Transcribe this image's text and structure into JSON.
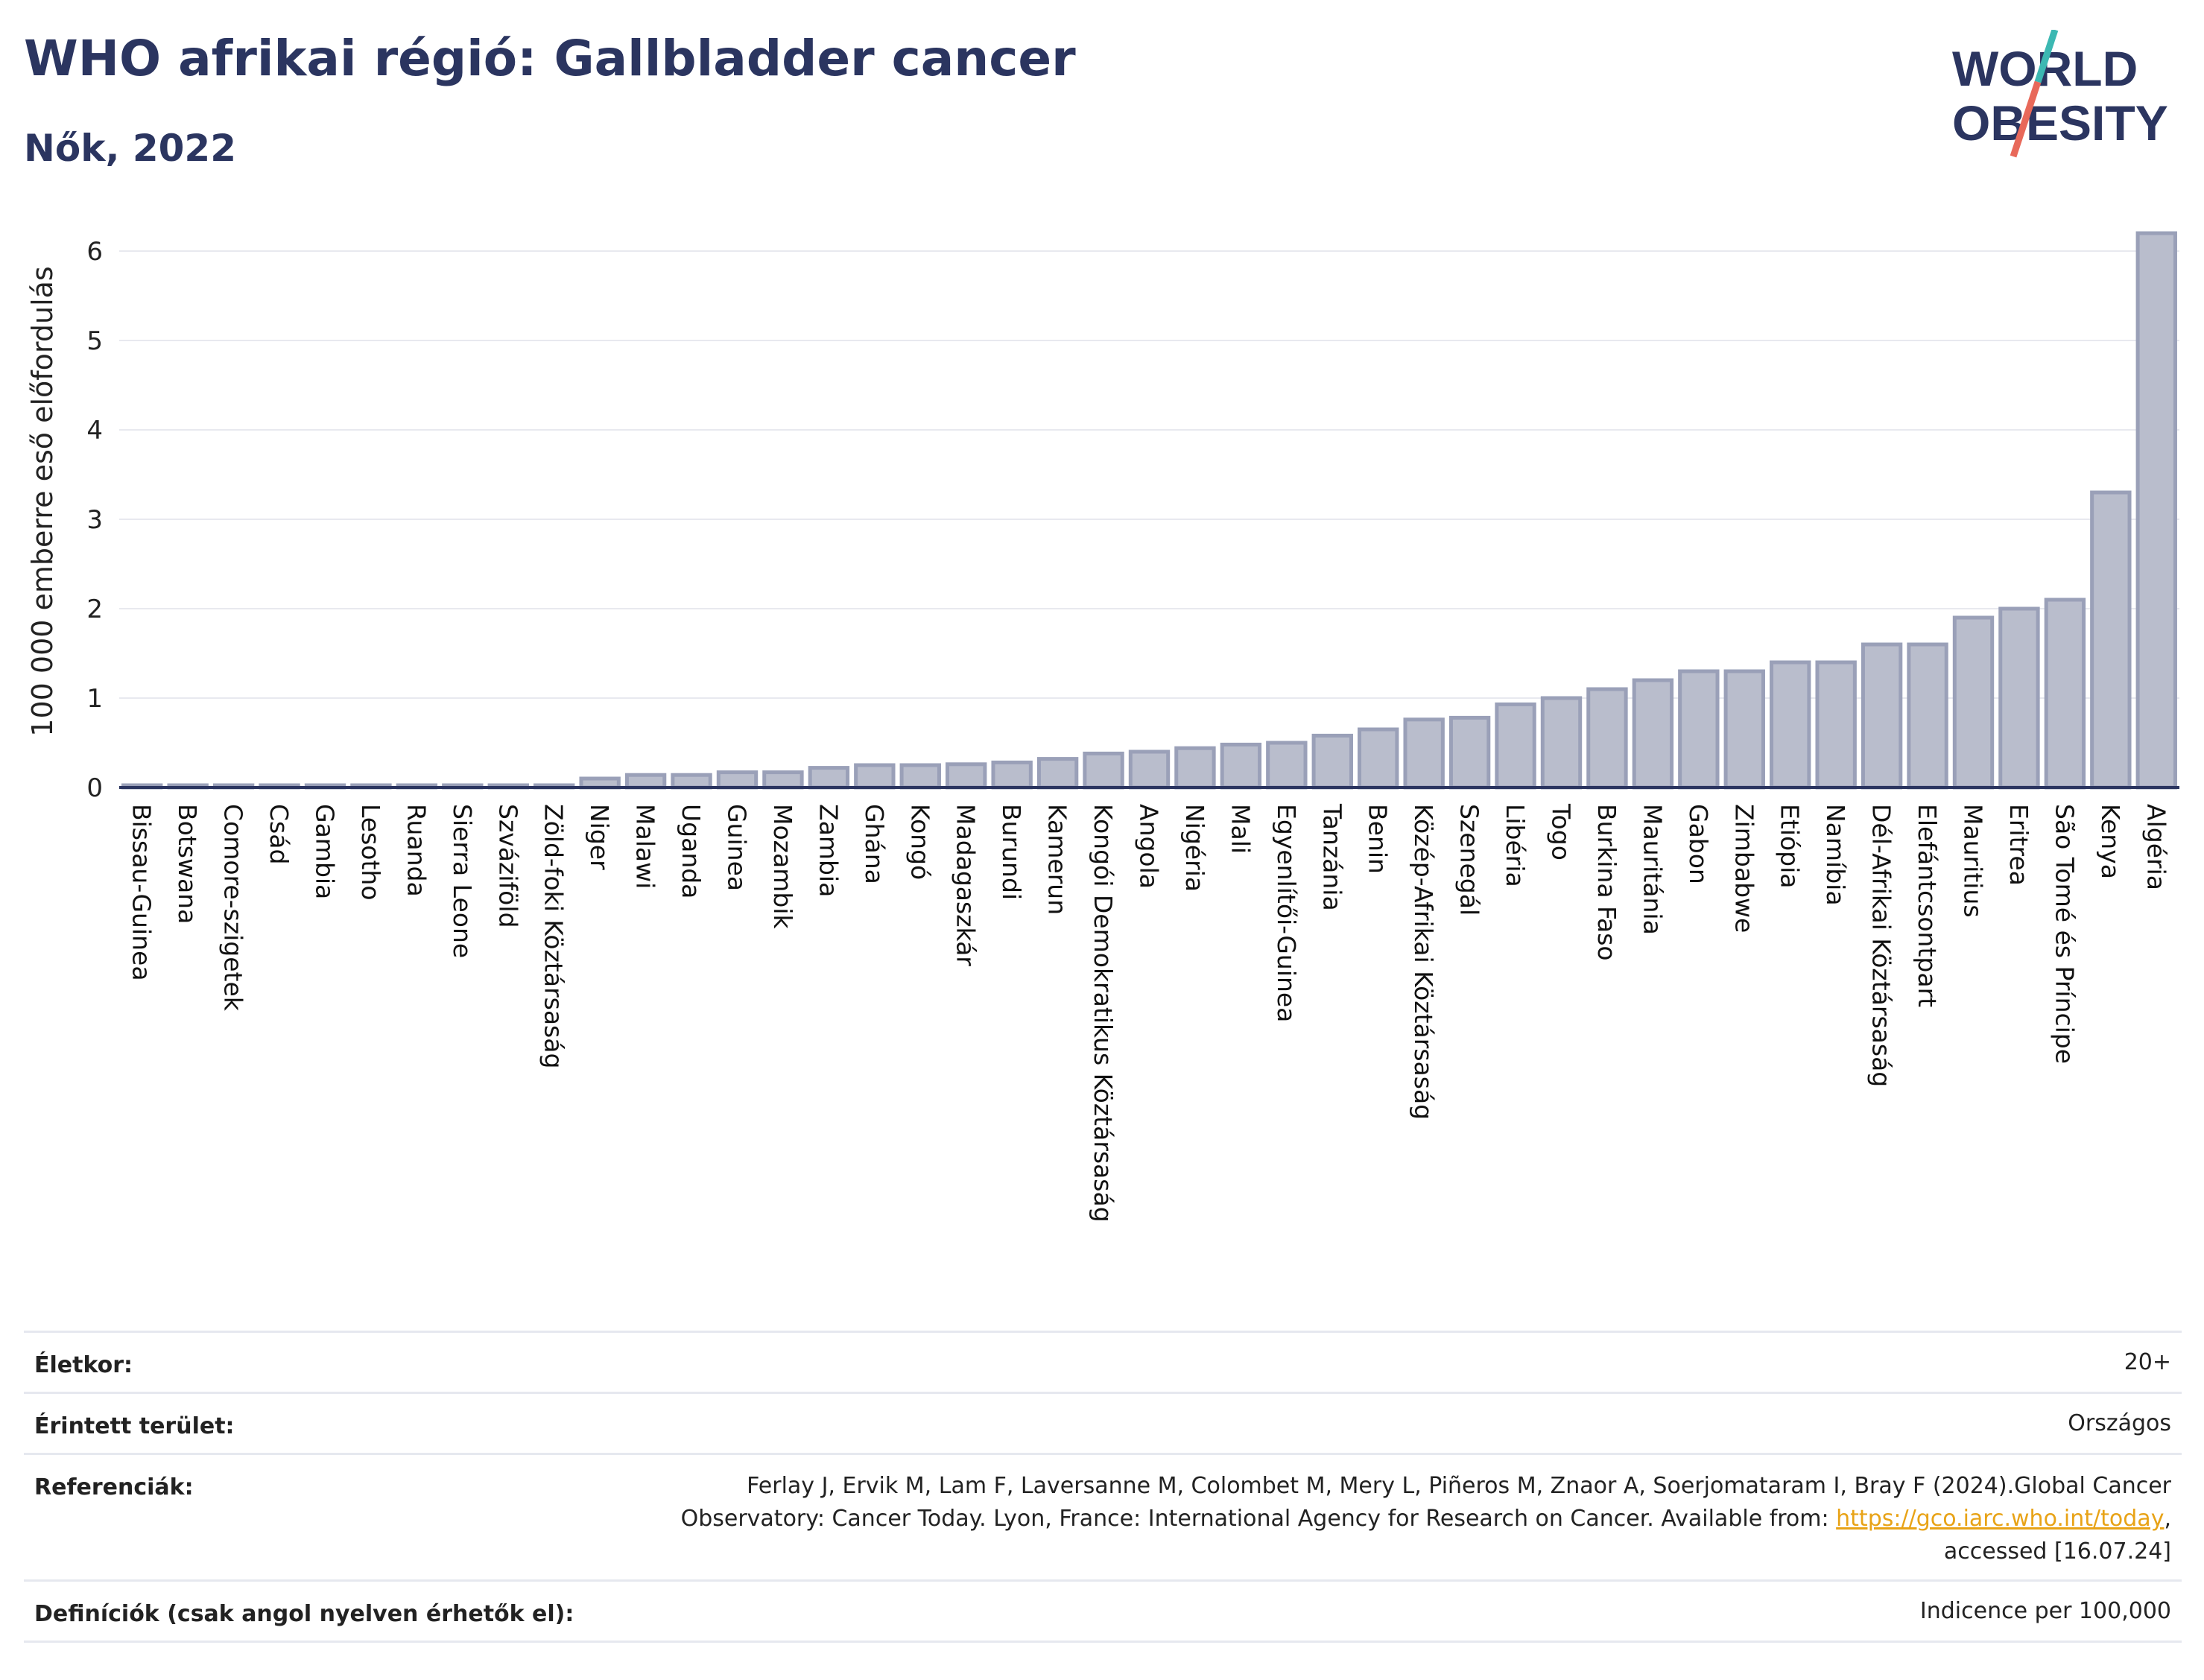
{
  "header": {
    "title": "WHO afrikai régió: Gallbladder cancer",
    "subtitle": "Nők, 2022",
    "logo_line1": "WORLD",
    "logo_line2": "OBESITY"
  },
  "colors": {
    "title": "#2b3560",
    "bar_fill": "#b9bdcc",
    "bar_stroke": "#9aa0b8",
    "axis": "#2b3560",
    "grid": "#e8e9ef",
    "logo_teal": "#3cb8b2",
    "logo_red": "#e8695a",
    "link": "#e8a317"
  },
  "chart_data": {
    "type": "bar",
    "ylabel": "100 000 emberre eső előfordulás",
    "xlabel": "",
    "ylim": [
      0,
      6.4
    ],
    "yticks": [
      0,
      1,
      2,
      3,
      4,
      5,
      6
    ],
    "grid": true,
    "categories": [
      "Bissau-Guinea",
      "Botswana",
      "Comore-szigetek",
      "Csád",
      "Gambia",
      "Lesotho",
      "Ruanda",
      "Sierra Leone",
      "Szváziföld",
      "Zöld-foki Köztársaság",
      "Niger",
      "Malawi",
      "Uganda",
      "Guinea",
      "Mozambik",
      "Zambia",
      "Ghána",
      "Kongó",
      "Madagaszkár",
      "Burundi",
      "Kamerun",
      "Kongói Demokratikus Köztársaság",
      "Angola",
      "Nigéria",
      "Mali",
      "Egyenlítői-Guinea",
      "Tanzánia",
      "Benin",
      "Közép-Afrikai Köztársaság",
      "Szenegál",
      "Libéria",
      "Togo",
      "Burkina Faso",
      "Mauritánia",
      "Gabon",
      "Zimbabwe",
      "Etiópia",
      "Namíbia",
      "Dél-Afrikai Köztársaság",
      "Elefántcsontpart",
      "Mauritius",
      "Eritrea",
      "São Tomé és Príncipe",
      "Kenya",
      "Algéria"
    ],
    "values": [
      0.02,
      0.02,
      0.02,
      0.02,
      0.02,
      0.02,
      0.02,
      0.02,
      0.02,
      0.02,
      0.1,
      0.14,
      0.14,
      0.17,
      0.17,
      0.22,
      0.25,
      0.25,
      0.26,
      0.28,
      0.32,
      0.38,
      0.4,
      0.44,
      0.48,
      0.5,
      0.58,
      0.65,
      0.76,
      0.78,
      0.93,
      1.0,
      1.1,
      1.2,
      1.3,
      1.3,
      1.4,
      1.4,
      1.6,
      1.6,
      1.9,
      2.0,
      2.1,
      3.3,
      6.2
    ]
  },
  "info": {
    "age_label": "Életkor:",
    "age_value": "20+",
    "area_label": "Érintett terület:",
    "area_value": "Országos",
    "ref_label": "Referenciák:",
    "ref_line1": "Ferlay J, Ervik M, Lam F, Laversanne M, Colombet M, Mery L, Piñeros M, Znaor A, Soerjomataram I, Bray F (2024).Global Cancer",
    "ref_line2a": "Observatory: Cancer Today. Lyon, France: International Agency for Research on Cancer. Available from: ",
    "ref_link": "https://gco.iarc.who.int/today",
    "ref_line2b": ",",
    "ref_line3": "accessed [16.07.24]",
    "def_label": "Definíciók (csak angol nyelven érhetők el):",
    "def_value": "Indicence per 100,000"
  }
}
